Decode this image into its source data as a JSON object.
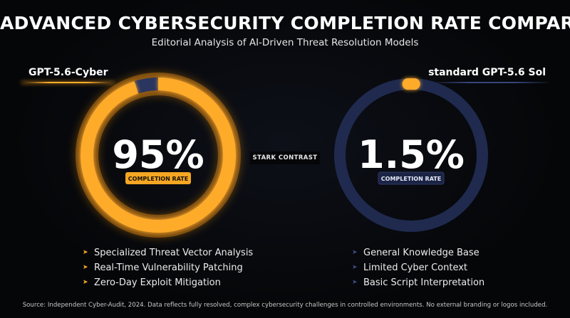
{
  "header": {
    "title": "ADVANCED CYBERSECURITY COMPLETION RATE COMPARISON",
    "subtitle": "Editorial Analysis of AI-Driven Threat Resolution Models"
  },
  "divider_label": "STARK CONTRAST",
  "chart_data": [
    {
      "type": "donut",
      "series_name": "GPT-5.6-Cyber",
      "value": 95,
      "max": 100,
      "value_label": "95%",
      "badge": "COMPLETION RATE",
      "accent_color": "#ffab2a",
      "track_color": "#2a3560",
      "features": [
        "Specialized Threat Vector Analysis",
        "Real-Time Vulnerability Patching",
        "Zero-Day Exploit Mitigation"
      ]
    },
    {
      "type": "donut",
      "series_name": "standard GPT-5.6 Sol",
      "value": 1.5,
      "max": 100,
      "value_label": "1.5%",
      "badge": "COMPLETION RATE",
      "accent_color": "#ffab2a",
      "track_color": "#1f2a4e",
      "features": [
        "General Knowledge Base",
        "Limited Cyber Context",
        "Basic Script Interpretation"
      ]
    }
  ],
  "footer": {
    "source": "Source: Independent Cyber-Audit, 2024. Data reflects fully resolved, complex cybersecurity challenges in controlled environments. No external branding or logos included."
  }
}
